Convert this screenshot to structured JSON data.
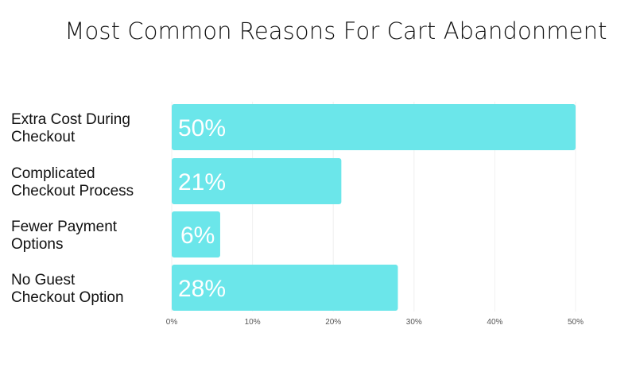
{
  "chart_data": {
    "type": "bar",
    "orientation": "horizontal",
    "title": "Most Common Reasons For Cart Abandonment",
    "categories": [
      [
        "Extra Cost During",
        "Checkout"
      ],
      [
        "Complicated",
        "Checkout Process"
      ],
      [
        "Fewer Payment",
        "Options"
      ],
      [
        "No Guest",
        "Checkout Option"
      ]
    ],
    "values": [
      50,
      21,
      6,
      28
    ],
    "data_labels": [
      "50%",
      "21%",
      "6%",
      "28%"
    ],
    "xlim": [
      0,
      50
    ],
    "xticks": [
      0,
      10,
      20,
      30,
      40,
      50
    ],
    "xtick_labels": [
      "0%",
      "10%",
      "20%",
      "30%",
      "40%",
      "50%"
    ],
    "xlabel": "",
    "ylabel": "",
    "grid": true,
    "legend": "none",
    "colors": {
      "bar": "#6be6ea",
      "grid": "#f0f0f0",
      "bar_label": "#ffffff",
      "text": "#111111"
    }
  }
}
